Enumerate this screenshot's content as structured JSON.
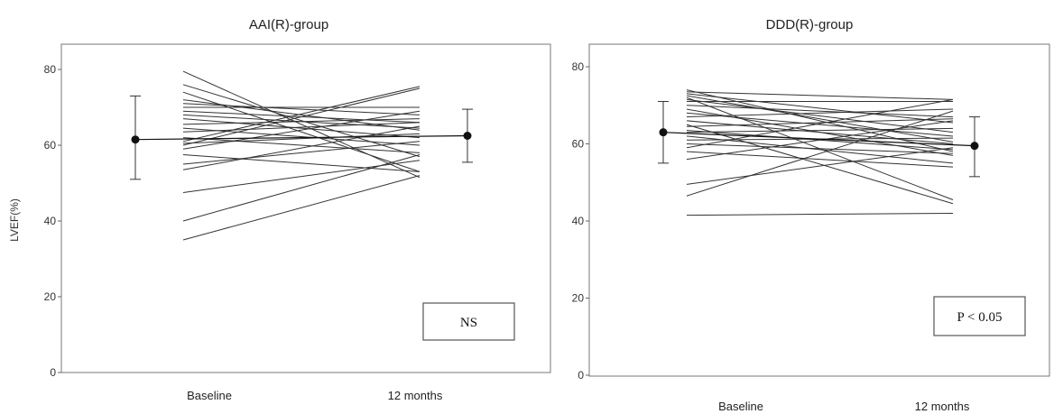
{
  "chart_data": [
    {
      "type": "line",
      "title": "AAI(R)-group",
      "ylabel": "LVEF(%)",
      "xlabel": "",
      "categories": [
        "Baseline",
        "12 months"
      ],
      "ylim": [
        0,
        80
      ],
      "yticks": [
        0,
        20,
        40,
        60,
        80
      ],
      "grid": false,
      "annotation": "NS",
      "mean": {
        "values": [
          61.5,
          62.5
        ],
        "lower": [
          51,
          55.5
        ],
        "upper": [
          73,
          69.5
        ]
      },
      "series": [
        {
          "values": [
            79.5,
            51.5
          ]
        },
        {
          "values": [
            76.0,
            57.0
          ]
        },
        {
          "values": [
            74.0,
            53.0
          ]
        },
        {
          "values": [
            72.0,
            64.0
          ]
        },
        {
          "values": [
            71.0,
            68.0
          ]
        },
        {
          "values": [
            70.0,
            70.0
          ]
        },
        {
          "values": [
            69.0,
            66.0
          ]
        },
        {
          "values": [
            68.0,
            64.5
          ]
        },
        {
          "values": [
            67.0,
            62.0
          ]
        },
        {
          "values": [
            65.5,
            67.0
          ]
        },
        {
          "values": [
            64.5,
            60.0
          ]
        },
        {
          "values": [
            63.5,
            66.0
          ]
        },
        {
          "values": [
            62.0,
            58.0
          ]
        },
        {
          "values": [
            61.0,
            75.5
          ]
        },
        {
          "values": [
            60.5,
            63.0
          ]
        },
        {
          "values": [
            60.0,
            75.0
          ]
        },
        {
          "values": [
            59.0,
            69.0
          ]
        },
        {
          "values": [
            57.5,
            53.0
          ]
        },
        {
          "values": [
            55.0,
            61.0
          ]
        },
        {
          "values": [
            53.5,
            65.0
          ]
        },
        {
          "values": [
            47.5,
            56.0
          ]
        },
        {
          "values": [
            40.0,
            57.5
          ]
        },
        {
          "values": [
            35.0,
            52.0
          ]
        }
      ]
    },
    {
      "type": "line",
      "title": "DDD(R)-group",
      "ylabel": "",
      "xlabel": "",
      "categories": [
        "Baseline",
        "12 months"
      ],
      "ylim": [
        0,
        80
      ],
      "yticks": [
        0,
        20,
        40,
        60,
        80
      ],
      "grid": false,
      "annotation": "P < 0.05",
      "mean": {
        "values": [
          63.0,
          59.5
        ],
        "lower": [
          55,
          51.5
        ],
        "upper": [
          71,
          67
        ]
      },
      "series": [
        {
          "values": [
            74.0,
            58.0
          ]
        },
        {
          "values": [
            73.5,
            71.5
          ]
        },
        {
          "values": [
            73.0,
            65.5
          ]
        },
        {
          "values": [
            72.5,
            60.5
          ]
        },
        {
          "values": [
            72.0,
            45.5
          ]
        },
        {
          "values": [
            71.5,
            63.0
          ]
        },
        {
          "values": [
            71.0,
            71.0
          ]
        },
        {
          "values": [
            70.0,
            67.0
          ]
        },
        {
          "values": [
            69.0,
            57.0
          ]
        },
        {
          "values": [
            68.0,
            62.0
          ]
        },
        {
          "values": [
            67.0,
            69.0
          ]
        },
        {
          "values": [
            66.0,
            60.0
          ]
        },
        {
          "values": [
            65.0,
            44.5
          ]
        },
        {
          "values": [
            64.5,
            66.5
          ]
        },
        {
          "values": [
            63.5,
            58.5
          ]
        },
        {
          "values": [
            63.0,
            64.0
          ]
        },
        {
          "values": [
            62.0,
            55.0
          ]
        },
        {
          "values": [
            61.0,
            61.5
          ]
        },
        {
          "values": [
            60.0,
            57.5
          ]
        },
        {
          "values": [
            59.0,
            71.5
          ]
        },
        {
          "values": [
            58.0,
            54.0
          ]
        },
        {
          "values": [
            56.0,
            66.0
          ]
        },
        {
          "values": [
            49.5,
            59.0
          ]
        },
        {
          "values": [
            46.5,
            68.5
          ]
        },
        {
          "values": [
            41.5,
            42.0
          ]
        }
      ]
    }
  ]
}
